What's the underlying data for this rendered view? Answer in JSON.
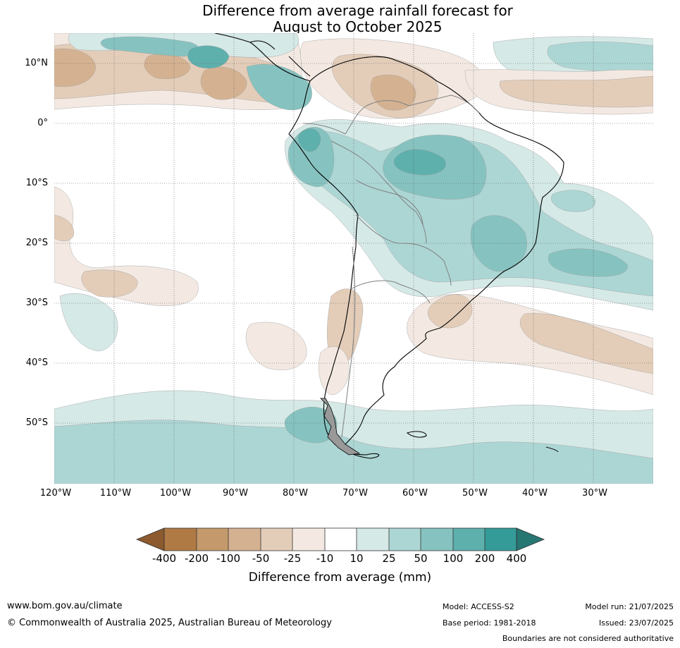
{
  "title": {
    "line1": "Difference from average rainfall forecast for",
    "line2": "August to October 2025"
  },
  "map": {
    "lat_labels": [
      "10°N",
      "0°",
      "10°S",
      "20°S",
      "30°S",
      "40°S",
      "50°S"
    ],
    "lon_labels": [
      "120°W",
      "110°W",
      "100°W",
      "90°W",
      "80°W",
      "70°W",
      "60°W",
      "50°W",
      "40°W",
      "30°W"
    ],
    "colors": {
      "dry_400": "#8c5a2e",
      "dry_200": "#b07a45",
      "dry_100": "#c49a6c",
      "dry_50": "#d4b291",
      "dry_25": "#e3cdb9",
      "dry_10": "#f3e9e2",
      "neutral": "#ffffff",
      "wet_10": "#d5e9e7",
      "wet_25": "#acd6d4",
      "wet_50": "#86c3c0",
      "wet_100": "#5eb0ad",
      "wet_200": "#349b98",
      "wet_400": "#267672"
    }
  },
  "legend": {
    "title": "Difference from average (mm)",
    "ticks": [
      "-400",
      "-200",
      "-100",
      "-50",
      "-25",
      "-10",
      "10",
      "25",
      "50",
      "100",
      "200",
      "400"
    ]
  },
  "footer": {
    "website": "www.bom.gov.au/climate",
    "copyright": "© Commonwealth of Australia 2025, Australian Bureau of Meteorology",
    "model": "Model: ACCESS-S2",
    "base_period": "Base period: 1981-2018",
    "model_run": "Model run: 21/07/2025",
    "issued": "Issued: 23/07/2025",
    "disclaimer": "Boundaries are not considered authoritative"
  }
}
